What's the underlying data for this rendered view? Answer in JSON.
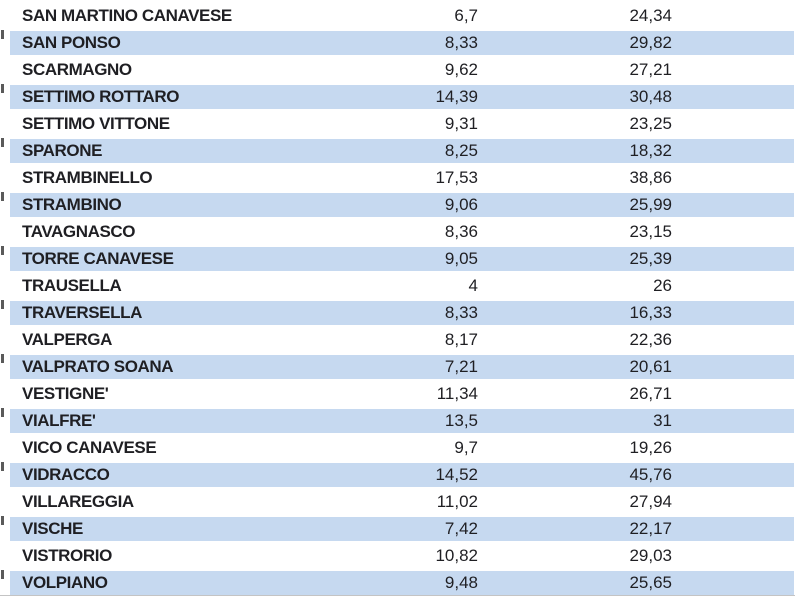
{
  "table": {
    "rows": [
      {
        "name": "SAN MARTINO CANAVESE",
        "v1": "6,7",
        "v2": "24,34"
      },
      {
        "name": "SAN PONSO",
        "v1": "8,33",
        "v2": "29,82"
      },
      {
        "name": "SCARMAGNO",
        "v1": "9,62",
        "v2": "27,21"
      },
      {
        "name": "SETTIMO ROTTARO",
        "v1": "14,39",
        "v2": "30,48"
      },
      {
        "name": "SETTIMO VITTONE",
        "v1": "9,31",
        "v2": "23,25"
      },
      {
        "name": "SPARONE",
        "v1": "8,25",
        "v2": "18,32"
      },
      {
        "name": "STRAMBINELLO",
        "v1": "17,53",
        "v2": "38,86"
      },
      {
        "name": "STRAMBINO",
        "v1": "9,06",
        "v2": "25,99"
      },
      {
        "name": "TAVAGNASCO",
        "v1": "8,36",
        "v2": "23,15"
      },
      {
        "name": "TORRE CANAVESE",
        "v1": "9,05",
        "v2": "25,39"
      },
      {
        "name": "TRAUSELLA",
        "v1": "4",
        "v2": "26"
      },
      {
        "name": "TRAVERSELLA",
        "v1": "8,33",
        "v2": "16,33"
      },
      {
        "name": "VALPERGA",
        "v1": "8,17",
        "v2": "22,36"
      },
      {
        "name": "VALPRATO SOANA",
        "v1": "7,21",
        "v2": "20,61"
      },
      {
        "name": "VESTIGNE'",
        "v1": "11,34",
        "v2": "26,71"
      },
      {
        "name": "VIALFRE'",
        "v1": "13,5",
        "v2": "31"
      },
      {
        "name": "VICO CANAVESE",
        "v1": "9,7",
        "v2": "19,26"
      },
      {
        "name": "VIDRACCO",
        "v1": "14,52",
        "v2": "45,76"
      },
      {
        "name": "VILLAREGGIA",
        "v1": "11,02",
        "v2": "27,94"
      },
      {
        "name": "VISCHE",
        "v1": "7,42",
        "v2": "22,17"
      },
      {
        "name": "VISTRORIO",
        "v1": "10,82",
        "v2": "29,03"
      },
      {
        "name": "VOLPIANO",
        "v1": "9,48",
        "v2": "25,65"
      }
    ]
  },
  "colors": {
    "row_shade": "#c6d9f0",
    "text": "#1f1f23",
    "bottom_border": "#c4c4c4",
    "border_tick": "#3d3d3d"
  }
}
